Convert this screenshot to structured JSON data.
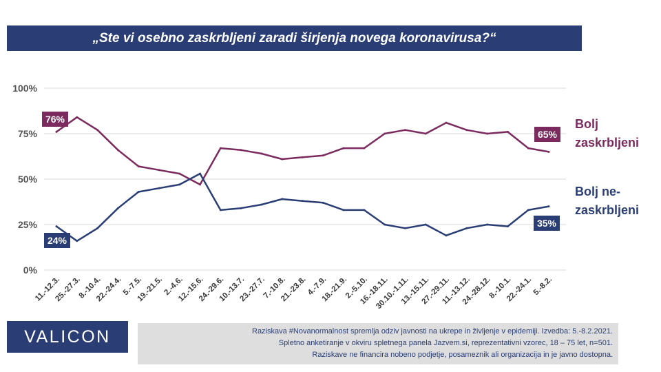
{
  "title": "„Ste vi osebno zaskrbljeni zaradi širjenja novega koronavirusa?“",
  "logo": "VALICON",
  "footnote": [
    "Raziskava #Novanormalnost spremlja  odziv javnosti  na ukrepe in življenje v epidemiji.  Izvedba: 5.-8.2.2021.",
    "Spletno anketiranje v okviru spletnega panela Jazvem.si, reprezentativni vzorec, 18 – 75 let, n=501.",
    "Raziskave ne financira nobeno podjetje, posameznik ali organizacija in je javno dostopna."
  ],
  "colors": {
    "brand": "#2a3e75",
    "worried": "#7b2b5e",
    "not_worried": "#2a3e75",
    "grid": "#d9d9d9",
    "footnote_bg": "#dedede"
  },
  "chart_data": {
    "type": "line",
    "title": "„Ste vi osebno zaskrbljeni zaradi širjenja novega koronavirusa?“",
    "xlabel": "",
    "ylabel": "",
    "ylim": [
      0,
      100
    ],
    "yticks": [
      0,
      25,
      50,
      75,
      100
    ],
    "ytick_labels": [
      "0%",
      "25%",
      "50%",
      "75%",
      "100%"
    ],
    "grid": true,
    "legend": "right",
    "categories": [
      "11.-12.3.",
      "25.-27.3.",
      "8.-10.4.",
      "22.-24.4.",
      "5.-7.5.",
      "19.-21.5.",
      "2.-4.6.",
      "12.-15.6.",
      "24.-29.6.",
      "10.-13.7.",
      "23.-27.7.",
      "7.-10.8.",
      "21.-23.8.",
      "4.-7.9.",
      "18.-21.9.",
      "2.-5.10.",
      "16.-18.11.",
      "30.10.-1.11.",
      "13.-15.11.",
      "27.-29.11.",
      "11.-13.12.",
      "24.-28.12.",
      "8.-10.1.",
      "22.-24.1.",
      "5.-8.2."
    ],
    "series": [
      {
        "name": "Bolj zaskrbljeni",
        "values": [
          76,
          84,
          77,
          66,
          57,
          55,
          53,
          47,
          67,
          66,
          64,
          61,
          62,
          63,
          67,
          67,
          75,
          77,
          75,
          81,
          77,
          75,
          76,
          67,
          65
        ],
        "start_label": "76%",
        "end_label": "65%"
      },
      {
        "name": "Bolj ne-zaskrbljeni",
        "values": [
          24,
          16,
          23,
          34,
          43,
          45,
          47,
          53,
          33,
          34,
          36,
          39,
          38,
          37,
          33,
          33,
          25,
          23,
          25,
          19,
          23,
          25,
          24,
          33,
          35
        ],
        "start_label": "24%",
        "end_label": "35%"
      }
    ]
  }
}
